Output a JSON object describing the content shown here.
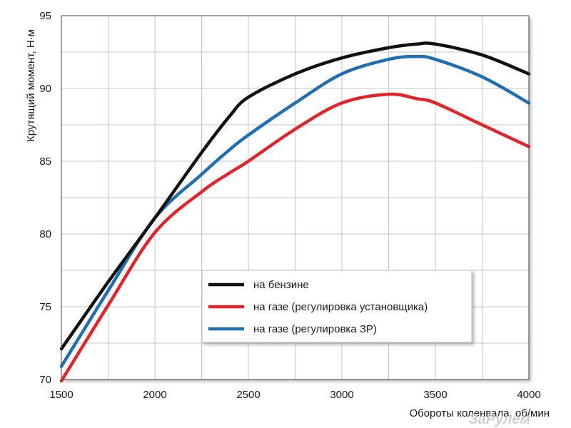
{
  "chart_data": {
    "type": "line",
    "ylabel": "Крутящий момент, Н·м",
    "xlabel": "Обороты коленвала, об/мин",
    "xlim": [
      1500,
      4000
    ],
    "ylim": [
      70,
      95
    ],
    "x_ticks": [
      "1500",
      "2000",
      "2500",
      "3000",
      "3500",
      "4000"
    ],
    "y_ticks": [
      "70",
      "75",
      "80",
      "85",
      "90",
      "95"
    ],
    "grid": true,
    "legend_position": "bottom-right",
    "x": [
      1500,
      1750,
      2000,
      2250,
      2400,
      2500,
      2750,
      3000,
      3250,
      3400,
      3500,
      3750,
      4000
    ],
    "series": [
      {
        "name": "на бензине",
        "color": "#111111",
        "values": [
          72.1,
          76.7,
          81.1,
          85.6,
          88.1,
          89.4,
          91.0,
          92.1,
          92.8,
          93.05,
          93.05,
          92.3,
          91.0
        ]
      },
      {
        "name": "на газе (регулировка установщика)",
        "color": "#e2242b",
        "values": [
          69.9,
          75.1,
          80.1,
          82.9,
          84.2,
          85.0,
          87.2,
          89.0,
          89.6,
          89.3,
          89.0,
          87.5,
          86.0
        ]
      },
      {
        "name": "на газе (регулировка ЗР)",
        "color": "#1f6fb2",
        "values": [
          70.9,
          76.1,
          81.1,
          84.1,
          85.8,
          86.8,
          89.0,
          91.0,
          92.0,
          92.2,
          92.0,
          90.8,
          89.0
        ]
      }
    ]
  },
  "watermark": "ЗаРулем"
}
